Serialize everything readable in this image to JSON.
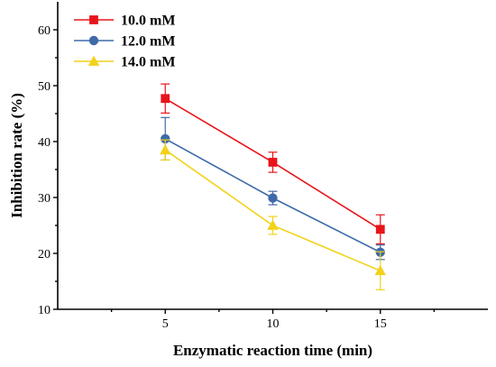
{
  "chart_data": {
    "type": "line",
    "title": "",
    "xlabel": "Enzymatic reaction time (min)",
    "ylabel": "Inhibition rate (%)",
    "x": [
      5,
      10,
      15
    ],
    "xlim": [
      0,
      20
    ],
    "ylim": [
      10,
      65
    ],
    "xticks": [
      5,
      10,
      15
    ],
    "yticks": [
      10,
      20,
      30,
      40,
      50,
      60
    ],
    "grid": false,
    "legend_position": "top-left",
    "series": [
      {
        "name": "10.0 mM",
        "color": "#e8141b",
        "marker": "square",
        "values": [
          47.7,
          36.3,
          24.3
        ],
        "errors": [
          2.6,
          1.8,
          2.6
        ]
      },
      {
        "name": "12.0 mM",
        "color": "#3e6aa8",
        "marker": "circle",
        "values": [
          40.5,
          29.9,
          20.2
        ],
        "errors": [
          3.8,
          1.2,
          1.3
        ]
      },
      {
        "name": "14.0 mM",
        "color": "#f2d21a",
        "marker": "triangle",
        "values": [
          38.5,
          25.0,
          16.9
        ],
        "errors": [
          1.8,
          1.6,
          3.4
        ]
      }
    ]
  }
}
